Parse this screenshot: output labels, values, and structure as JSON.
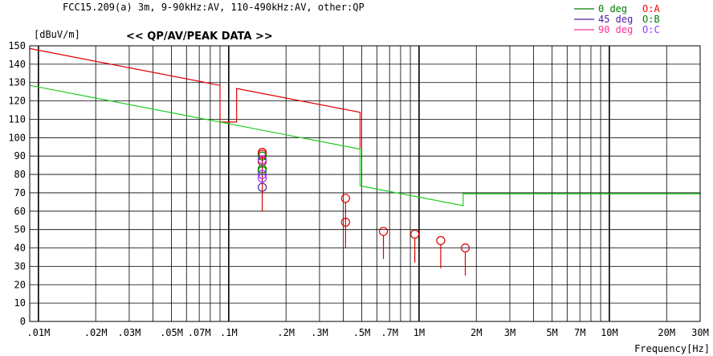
{
  "chart_data": {
    "type": "line",
    "title": "<< QP/AV/PEAK DATA >>",
    "subtitle": "FCC15.209(a) 3m, 9-90kHz:AV, 110-490kHz:AV, other:QP",
    "ylabel": "[dBuV/m]",
    "xlabel": "Frequency[Hz]",
    "x_scale": "log",
    "xlim_hz": [
      9000,
      30000000
    ],
    "ylim": [
      0,
      150
    ],
    "y_ticks": [
      0,
      10,
      20,
      30,
      40,
      50,
      60,
      70,
      80,
      90,
      100,
      110,
      120,
      130,
      140,
      150
    ],
    "x_ticks": [
      {
        "hz": 10000,
        "label": ".01M"
      },
      {
        "hz": 20000,
        "label": ".02M"
      },
      {
        "hz": 30000,
        "label": ".03M"
      },
      {
        "hz": 50000,
        "label": ".05M"
      },
      {
        "hz": 70000,
        "label": ".07M"
      },
      {
        "hz": 100000,
        "label": ".1M"
      },
      {
        "hz": 200000,
        "label": ".2M"
      },
      {
        "hz": 300000,
        "label": ".3M"
      },
      {
        "hz": 500000,
        "label": ".5M"
      },
      {
        "hz": 700000,
        "label": ".7M"
      },
      {
        "hz": 1000000,
        "label": "1M"
      },
      {
        "hz": 2000000,
        "label": "2M"
      },
      {
        "hz": 3000000,
        "label": "3M"
      },
      {
        "hz": 5000000,
        "label": "5M"
      },
      {
        "hz": 7000000,
        "label": "7M"
      },
      {
        "hz": 10000000,
        "label": "10M"
      },
      {
        "hz": 20000000,
        "label": "20M"
      },
      {
        "hz": 30000000,
        "label": "30M"
      }
    ],
    "grid": true,
    "legend_position": "top-right",
    "legend": [
      {
        "line_label": "0 deg",
        "marker_label": "O:A",
        "color": "#008000",
        "marker_color": "#ff0000"
      },
      {
        "line_label": "45 deg",
        "marker_label": "O:B",
        "color": "#5020a0",
        "marker_color": "#008000"
      },
      {
        "line_label": "90 deg",
        "marker_label": "O:C",
        "color": "#ff3399",
        "marker_color": "#9933ff"
      }
    ],
    "series": [
      {
        "color": "#dd0000",
        "points": [
          [
            9000,
            148.5
          ],
          [
            90000,
            128.5
          ],
          [
            90000,
            108.5
          ],
          [
            110000,
            108.5
          ],
          [
            110000,
            126.8
          ],
          [
            490000,
            113.8
          ],
          [
            490000,
            93.8
          ]
        ]
      },
      {
        "color": "#22cc22",
        "points": [
          [
            9000,
            128.5
          ],
          [
            490000,
            93.8
          ],
          [
            490000,
            73.8
          ],
          [
            1705000,
            63
          ],
          [
            1705000,
            69.5
          ],
          [
            30000000,
            69.5
          ]
        ]
      }
    ],
    "markers": [
      {
        "hz": 150000,
        "value": 92,
        "floor": 60,
        "color": "#dd0000"
      },
      {
        "hz": 150000,
        "value": 91,
        "color": "#dd0000"
      },
      {
        "hz": 150000,
        "value": 87,
        "color": "#dd0000"
      },
      {
        "hz": 150000,
        "value": 90,
        "color": "#008000"
      },
      {
        "hz": 150000,
        "value": 83,
        "color": "#008000"
      },
      {
        "hz": 150000,
        "value": 82,
        "color": "#008000"
      },
      {
        "hz": 150000,
        "value": 88,
        "color": "#9933ff"
      },
      {
        "hz": 150000,
        "value": 80,
        "color": "#9933ff"
      },
      {
        "hz": 150000,
        "value": 78,
        "color": "#9933ff"
      },
      {
        "hz": 150000,
        "value": 73,
        "color": "#5020a0"
      },
      {
        "hz": 411000,
        "value": 67,
        "floor": 40,
        "color": "#dd0000"
      },
      {
        "hz": 411000,
        "value": 54,
        "color": "#dd0000"
      },
      {
        "hz": 650000,
        "value": 49,
        "floor": 34,
        "color": "#dd0000"
      },
      {
        "hz": 950000,
        "value": 47.5,
        "floor": 32,
        "color": "#dd0000"
      },
      {
        "hz": 1300000,
        "value": 44,
        "floor": 29,
        "color": "#dd0000"
      },
      {
        "hz": 1750000,
        "value": 40,
        "floor": 25,
        "color": "#dd0000"
      }
    ]
  }
}
